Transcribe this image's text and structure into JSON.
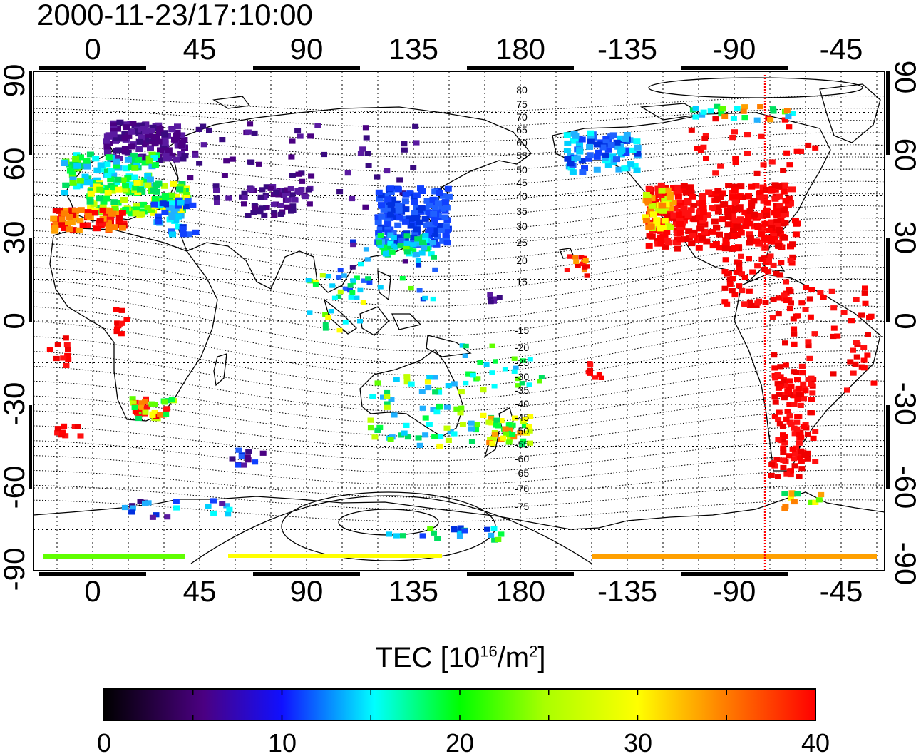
{
  "timestamp": "2000-11-23/17:10:00",
  "map": {
    "lon_ticks": [
      "0",
      "45",
      "90",
      "135",
      "180",
      "-135",
      "-90",
      "-45"
    ],
    "lat_ticks": [
      "90",
      "60",
      "30",
      "0",
      "-30",
      "-60",
      "-90"
    ],
    "contour_labels_north": [
      "80",
      "75",
      "70",
      "65",
      "60",
      "55",
      "50",
      "45",
      "40",
      "35",
      "30",
      "25",
      "20",
      "15"
    ],
    "contour_labels_south": [
      "-15",
      "-20",
      "-25",
      "-30",
      "-35",
      "-40",
      "-45",
      "-50",
      "-55",
      "-60",
      "-65",
      "-70",
      "-75"
    ],
    "marker_longitude": "-77",
    "marker_color": "#ff0000"
  },
  "colorbar": {
    "title_prefix": "TEC  [10",
    "title_exp1": "16",
    "title_mid": "/m",
    "title_exp2": "2",
    "title_suffix": "]",
    "ticks": [
      "0",
      "10",
      "20",
      "30",
      "40"
    ],
    "range": [
      0,
      40
    ],
    "stops": [
      "#000000",
      "#4b0082",
      "#1010ff",
      "#00ffff",
      "#00ff00",
      "#ffff00",
      "#ff8000",
      "#ff0000"
    ]
  }
}
